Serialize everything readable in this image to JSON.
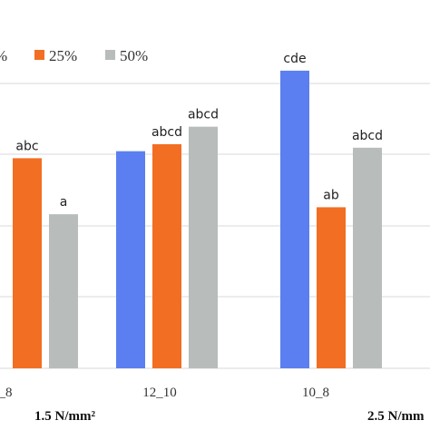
{
  "chart_data": {
    "type": "bar",
    "categories": [
      "_8",
      "12_10",
      "10_8"
    ],
    "groups": [
      "1.5 N/mm²",
      "2.5 N/mm"
    ],
    "legend": [
      {
        "label": "%",
        "color": "#5b7ff0"
      },
      {
        "label": "25%",
        "color": "#f26e22"
      },
      {
        "label": "50%",
        "color": "#b8bcbb"
      }
    ],
    "series": [
      {
        "name": "%",
        "color": "#5b7ff0",
        "values": [
          null,
          0.62,
          0.85
        ],
        "labels": [
          "",
          "",
          "cde"
        ]
      },
      {
        "name": "25%",
        "color": "#f26e22",
        "values": [
          0.6,
          0.64,
          0.46
        ],
        "labels": [
          "abc",
          "abcd",
          "ab"
        ]
      },
      {
        "name": "50%",
        "color": "#b8bcbb",
        "values": [
          0.44,
          0.69,
          0.63
        ],
        "labels": [
          "a",
          "abcd",
          "abcd"
        ]
      }
    ],
    "ylim": [
      0,
      1
    ],
    "grid": true,
    "legend_position": "top"
  }
}
